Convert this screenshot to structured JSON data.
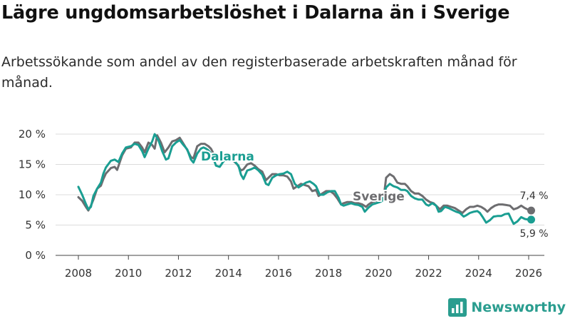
{
  "title": "Lägre ungdomsarbetslöshet i Dalarna än i Sverige",
  "subtitle": "Arbetssökande som andel av den registerbaserade arbetskraften månad för månad.",
  "brand": {
    "name": "Newsworthy",
    "icon": "newsworthy-logo-icon"
  },
  "colors": {
    "dalarna": "#1a9e92",
    "sverige": "#6d6d70",
    "grid": "#dcdcdc",
    "axis": "#333333",
    "brand": "#2a9d8f"
  },
  "chart_data": {
    "type": "line",
    "title": "Lägre ungdomsarbetslöshet i Dalarna än i Sverige",
    "xlabel": "",
    "ylabel": "",
    "xlim": [
      2007.5,
      2026.8
    ],
    "ylim": [
      0,
      20
    ],
    "x_ticks": [
      2008,
      2010,
      2012,
      2014,
      2016,
      2018,
      2020,
      2022,
      2024,
      2026
    ],
    "y_ticks": [
      0,
      5,
      10,
      15,
      20
    ],
    "y_tick_labels": [
      "0 %",
      "5 %",
      "10 %",
      "15 %",
      "20 %"
    ],
    "grid": "horizontal",
    "series": [
      {
        "name": "Dalarna",
        "end_label": "5,9 %",
        "points": [
          [
            2008.0,
            11.3
          ],
          [
            2008.15,
            10.0
          ],
          [
            2008.3,
            8.5
          ],
          [
            2008.4,
            7.6
          ],
          [
            2008.5,
            8.0
          ],
          [
            2008.6,
            9.8
          ],
          [
            2008.75,
            11.0
          ],
          [
            2008.9,
            12.0
          ],
          [
            2009.0,
            13.5
          ],
          [
            2009.1,
            14.5
          ],
          [
            2009.3,
            15.6
          ],
          [
            2009.45,
            15.8
          ],
          [
            2009.6,
            15.4
          ],
          [
            2009.75,
            16.8
          ],
          [
            2009.9,
            17.8
          ],
          [
            2010.1,
            18.0
          ],
          [
            2010.25,
            18.4
          ],
          [
            2010.4,
            18.2
          ],
          [
            2010.55,
            17.2
          ],
          [
            2010.65,
            16.2
          ],
          [
            2010.8,
            17.6
          ],
          [
            2010.95,
            18.8
          ],
          [
            2011.05,
            20.0
          ],
          [
            2011.2,
            19.0
          ],
          [
            2011.35,
            17.2
          ],
          [
            2011.5,
            15.8
          ],
          [
            2011.6,
            16.0
          ],
          [
            2011.75,
            18.0
          ],
          [
            2011.9,
            18.6
          ],
          [
            2012.05,
            19.0
          ],
          [
            2012.2,
            18.2
          ],
          [
            2012.35,
            17.5
          ],
          [
            2012.5,
            15.8
          ],
          [
            2012.6,
            15.3
          ],
          [
            2012.75,
            16.8
          ],
          [
            2012.9,
            17.6
          ],
          [
            2013.0,
            17.8
          ],
          [
            2013.1,
            17.6
          ],
          [
            2013.2,
            17.3
          ],
          [
            2013.3,
            16.8
          ],
          [
            2013.4,
            16.0
          ],
          [
            2013.5,
            14.8
          ],
          [
            2013.65,
            14.6
          ],
          [
            2013.8,
            15.5
          ],
          [
            2013.95,
            15.8
          ],
          [
            2014.1,
            16.0
          ],
          [
            2014.25,
            15.5
          ],
          [
            2014.4,
            14.8
          ],
          [
            2014.5,
            13.3
          ],
          [
            2014.6,
            12.6
          ],
          [
            2014.75,
            14.0
          ],
          [
            2014.9,
            14.2
          ],
          [
            2015.05,
            14.5
          ],
          [
            2015.2,
            14.0
          ],
          [
            2015.35,
            13.3
          ],
          [
            2015.5,
            11.8
          ],
          [
            2015.6,
            11.6
          ],
          [
            2015.75,
            12.8
          ],
          [
            2015.9,
            13.2
          ],
          [
            2016.05,
            13.4
          ],
          [
            2016.2,
            13.5
          ],
          [
            2016.35,
            13.8
          ],
          [
            2016.5,
            13.4
          ],
          [
            2016.65,
            11.8
          ],
          [
            2016.8,
            11.2
          ],
          [
            2016.95,
            11.6
          ],
          [
            2017.1,
            12.0
          ],
          [
            2017.25,
            12.2
          ],
          [
            2017.4,
            11.8
          ],
          [
            2017.5,
            11.4
          ],
          [
            2017.65,
            10.0
          ],
          [
            2017.8,
            10.0
          ],
          [
            2017.95,
            10.4
          ],
          [
            2018.1,
            10.6
          ],
          [
            2018.25,
            10.6
          ],
          [
            2018.4,
            9.5
          ],
          [
            2018.5,
            8.4
          ],
          [
            2018.6,
            8.2
          ],
          [
            2018.75,
            8.4
          ],
          [
            2018.9,
            8.6
          ],
          [
            2019.05,
            8.4
          ],
          [
            2019.2,
            8.3
          ],
          [
            2019.35,
            8.0
          ],
          [
            2019.45,
            7.2
          ],
          [
            2019.6,
            7.9
          ],
          [
            2019.75,
            8.4
          ],
          [
            2019.9,
            8.6
          ],
          [
            2020.05,
            8.8
          ],
          [
            2020.15,
            9.0
          ],
          [
            2020.3,
            11.2
          ],
          [
            2020.45,
            11.8
          ],
          [
            2020.6,
            11.4
          ],
          [
            2020.75,
            11.2
          ],
          [
            2020.9,
            10.8
          ],
          [
            2021.05,
            10.8
          ],
          [
            2021.15,
            10.6
          ],
          [
            2021.3,
            9.8
          ],
          [
            2021.45,
            9.4
          ],
          [
            2021.6,
            9.2
          ],
          [
            2021.75,
            9.2
          ],
          [
            2021.9,
            8.4
          ],
          [
            2022.0,
            8.2
          ],
          [
            2022.15,
            8.6
          ],
          [
            2022.3,
            8.2
          ],
          [
            2022.4,
            7.2
          ],
          [
            2022.5,
            7.3
          ],
          [
            2022.65,
            8.0
          ],
          [
            2022.8,
            7.8
          ],
          [
            2022.95,
            7.5
          ],
          [
            2023.1,
            7.2
          ],
          [
            2023.25,
            7.0
          ],
          [
            2023.4,
            6.4
          ],
          [
            2023.5,
            6.6
          ],
          [
            2023.65,
            7.0
          ],
          [
            2023.8,
            7.2
          ],
          [
            2023.95,
            7.3
          ],
          [
            2024.05,
            7.0
          ],
          [
            2024.15,
            6.4
          ],
          [
            2024.3,
            5.4
          ],
          [
            2024.45,
            5.8
          ],
          [
            2024.6,
            6.4
          ],
          [
            2024.75,
            6.5
          ],
          [
            2024.9,
            6.5
          ],
          [
            2025.05,
            6.8
          ],
          [
            2025.2,
            6.9
          ],
          [
            2025.3,
            6.0
          ],
          [
            2025.4,
            5.2
          ],
          [
            2025.55,
            5.6
          ],
          [
            2025.7,
            6.3
          ],
          [
            2025.85,
            6.0
          ],
          [
            2026.0,
            5.9
          ],
          [
            2026.1,
            5.9
          ]
        ]
      },
      {
        "name": "Sverige",
        "end_label": "7,4 %",
        "points": [
          [
            2008.0,
            9.6
          ],
          [
            2008.15,
            9.0
          ],
          [
            2008.3,
            8.0
          ],
          [
            2008.4,
            7.4
          ],
          [
            2008.5,
            8.2
          ],
          [
            2008.6,
            9.2
          ],
          [
            2008.75,
            11.0
          ],
          [
            2008.9,
            11.5
          ],
          [
            2009.0,
            12.6
          ],
          [
            2009.1,
            13.5
          ],
          [
            2009.3,
            14.4
          ],
          [
            2009.45,
            14.6
          ],
          [
            2009.55,
            14.1
          ],
          [
            2009.75,
            16.5
          ],
          [
            2009.9,
            17.6
          ],
          [
            2010.1,
            17.8
          ],
          [
            2010.25,
            18.6
          ],
          [
            2010.4,
            18.6
          ],
          [
            2010.55,
            17.8
          ],
          [
            2010.65,
            17.0
          ],
          [
            2010.8,
            18.6
          ],
          [
            2010.95,
            18.2
          ],
          [
            2011.05,
            17.6
          ],
          [
            2011.15,
            19.8
          ],
          [
            2011.3,
            18.6
          ],
          [
            2011.45,
            17.0
          ],
          [
            2011.6,
            17.8
          ],
          [
            2011.75,
            18.8
          ],
          [
            2011.9,
            19.0
          ],
          [
            2012.05,
            19.4
          ],
          [
            2012.2,
            18.4
          ],
          [
            2012.35,
            17.4
          ],
          [
            2012.5,
            16.2
          ],
          [
            2012.6,
            16.0
          ],
          [
            2012.75,
            18.0
          ],
          [
            2012.9,
            18.4
          ],
          [
            2013.05,
            18.4
          ],
          [
            2013.2,
            18.0
          ],
          [
            2013.3,
            17.6
          ],
          [
            2013.45,
            16.4
          ],
          [
            2013.6,
            15.8
          ],
          [
            2013.75,
            16.4
          ],
          [
            2013.9,
            16.2
          ],
          [
            2014.05,
            16.0
          ],
          [
            2014.2,
            15.6
          ],
          [
            2014.35,
            15.0
          ],
          [
            2014.5,
            14.0
          ],
          [
            2014.6,
            14.2
          ],
          [
            2014.75,
            15.0
          ],
          [
            2014.9,
            15.2
          ],
          [
            2015.05,
            14.8
          ],
          [
            2015.2,
            14.2
          ],
          [
            2015.35,
            13.8
          ],
          [
            2015.5,
            12.4
          ],
          [
            2015.6,
            12.8
          ],
          [
            2015.75,
            13.4
          ],
          [
            2015.9,
            13.4
          ],
          [
            2016.05,
            13.2
          ],
          [
            2016.2,
            13.2
          ],
          [
            2016.35,
            13.0
          ],
          [
            2016.5,
            12.2
          ],
          [
            2016.6,
            11.0
          ],
          [
            2016.75,
            11.4
          ],
          [
            2016.9,
            11.8
          ],
          [
            2017.05,
            11.6
          ],
          [
            2017.2,
            11.4
          ],
          [
            2017.35,
            10.6
          ],
          [
            2017.5,
            10.8
          ],
          [
            2017.6,
            9.8
          ],
          [
            2017.75,
            10.2
          ],
          [
            2017.9,
            10.6
          ],
          [
            2018.05,
            10.6
          ],
          [
            2018.2,
            10.2
          ],
          [
            2018.35,
            9.4
          ],
          [
            2018.5,
            8.4
          ],
          [
            2018.6,
            8.6
          ],
          [
            2018.75,
            8.8
          ],
          [
            2018.9,
            8.8
          ],
          [
            2019.05,
            8.6
          ],
          [
            2019.2,
            8.6
          ],
          [
            2019.35,
            8.4
          ],
          [
            2019.5,
            8.0
          ],
          [
            2019.6,
            8.4
          ],
          [
            2019.75,
            8.8
          ],
          [
            2019.9,
            9.0
          ],
          [
            2020.05,
            9.0
          ],
          [
            2020.2,
            9.4
          ],
          [
            2020.3,
            12.8
          ],
          [
            2020.45,
            13.4
          ],
          [
            2020.6,
            13.0
          ],
          [
            2020.75,
            12.0
          ],
          [
            2020.9,
            11.8
          ],
          [
            2021.05,
            11.8
          ],
          [
            2021.15,
            11.4
          ],
          [
            2021.3,
            10.6
          ],
          [
            2021.45,
            10.2
          ],
          [
            2021.6,
            10.2
          ],
          [
            2021.75,
            9.8
          ],
          [
            2021.9,
            9.2
          ],
          [
            2022.05,
            8.8
          ],
          [
            2022.2,
            8.6
          ],
          [
            2022.35,
            8.0
          ],
          [
            2022.45,
            7.6
          ],
          [
            2022.6,
            8.2
          ],
          [
            2022.75,
            8.2
          ],
          [
            2022.9,
            8.0
          ],
          [
            2023.05,
            7.8
          ],
          [
            2023.2,
            7.4
          ],
          [
            2023.35,
            7.0
          ],
          [
            2023.5,
            7.6
          ],
          [
            2023.65,
            8.0
          ],
          [
            2023.8,
            8.0
          ],
          [
            2023.95,
            8.2
          ],
          [
            2024.1,
            8.0
          ],
          [
            2024.25,
            7.6
          ],
          [
            2024.35,
            7.2
          ],
          [
            2024.5,
            7.8
          ],
          [
            2024.65,
            8.2
          ],
          [
            2024.8,
            8.4
          ],
          [
            2024.95,
            8.4
          ],
          [
            2025.1,
            8.3
          ],
          [
            2025.25,
            8.2
          ],
          [
            2025.4,
            7.6
          ],
          [
            2025.55,
            7.8
          ],
          [
            2025.7,
            8.2
          ],
          [
            2025.85,
            7.8
          ],
          [
            2026.0,
            7.5
          ],
          [
            2026.1,
            7.4
          ]
        ]
      }
    ]
  }
}
